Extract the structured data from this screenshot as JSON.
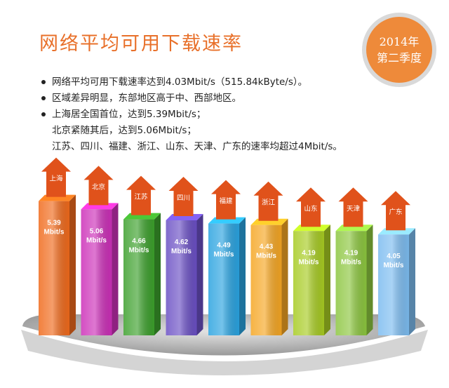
{
  "header": {
    "title": "网络平均可用下载速率",
    "badge_year": "2014年",
    "badge_quarter": "第二季度"
  },
  "bullets": [
    {
      "lines": [
        "网络平均可用下载速率达到4.03Mbit/s（515.84kByte/s）。"
      ]
    },
    {
      "lines": [
        "区域差异明显，东部地区高于中、西部地区。"
      ]
    },
    {
      "lines": [
        "上海居全国首位，达到5.39Mbit/s；",
        "北京紧随其后，达到5.06Mbit/s；",
        "江苏、四川、福建、浙江、山东、天津、广东的速率均超过4Mbit/s。"
      ]
    }
  ],
  "chart_data": {
    "type": "bar",
    "unit": "Mbit/s",
    "categories": [
      "上海",
      "北京",
      "江苏",
      "四川",
      "福建",
      "浙江",
      "山东",
      "天津",
      "广东"
    ],
    "values": [
      5.39,
      5.06,
      4.66,
      4.62,
      4.49,
      4.43,
      4.19,
      4.19,
      4.05
    ],
    "labels": [
      "5.39 Mbit/s",
      "5.06 Mbit/s",
      "4.66 Mbit/s",
      "4.62 Mbit/s",
      "4.49 Mbit/s",
      "4.43 Mbit/s",
      "4.19 Mbit/s",
      "4.19 Mbit/s",
      "4.05 Mbit/s"
    ],
    "colors": [
      "#f06a1c",
      "#cc2fb8",
      "#3ca02c",
      "#6a4fc4",
      "#2aa3e0",
      "#f5a623",
      "#a7cb22",
      "#8cc63f",
      "#7cbcf0"
    ],
    "arrow_color": "#e0521b",
    "ylim": [
      0,
      6
    ]
  }
}
